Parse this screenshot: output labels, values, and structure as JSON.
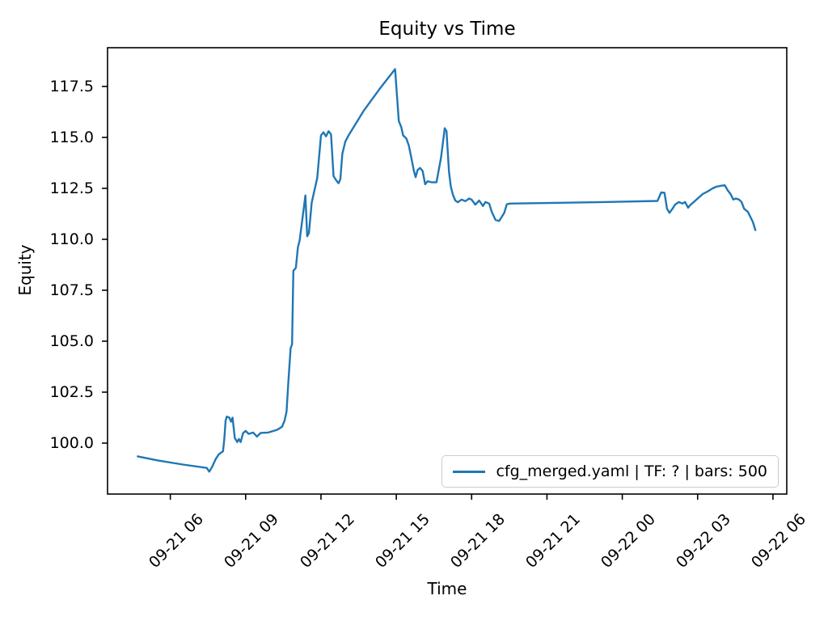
{
  "figure": {
    "title": "Equity vs Time",
    "xlabel": "Time",
    "ylabel": "Equity"
  },
  "legend": {
    "position": "lower right",
    "entries": [
      {
        "label": "cfg_merged.yaml | TF: ? | bars: 500",
        "color": "#1f77b4"
      }
    ]
  },
  "chart_data": {
    "type": "line",
    "title": "Equity vs Time",
    "xlabel": "Time",
    "ylabel": "Equity",
    "grid": false,
    "legend_position": "lower right",
    "line_color": "#1f77b4",
    "x_axis_unit": "hours since 09-21 00:00",
    "xlim": [
      3.5,
      30.55
    ],
    "ylim": [
      97.5,
      119.4
    ],
    "x_ticks": {
      "values": [
        6,
        9,
        12,
        15,
        18,
        21,
        24,
        27,
        30
      ],
      "labels": [
        "09-21 06",
        "09-21 09",
        "09-21 12",
        "09-21 15",
        "09-21 18",
        "09-21 21",
        "09-22 00",
        "09-22 03",
        "09-22 06"
      ]
    },
    "y_ticks": {
      "values": [
        100.0,
        102.5,
        105.0,
        107.5,
        110.0,
        112.5,
        115.0,
        117.5
      ],
      "labels": [
        "100.0",
        "102.5",
        "105.0",
        "107.5",
        "110.0",
        "112.5",
        "115.0",
        "117.5"
      ]
    },
    "series": [
      {
        "name": "cfg_merged.yaml | TF: ? | bars: 500",
        "color": "#1f77b4",
        "points": [
          [
            4.7,
            99.35
          ],
          [
            5.5,
            99.15
          ],
          [
            6.5,
            98.95
          ],
          [
            7.45,
            98.78
          ],
          [
            7.55,
            98.6
          ],
          [
            7.67,
            98.85
          ],
          [
            7.8,
            99.2
          ],
          [
            7.93,
            99.45
          ],
          [
            8.1,
            99.6
          ],
          [
            8.15,
            100.2
          ],
          [
            8.2,
            101.1
          ],
          [
            8.25,
            101.3
          ],
          [
            8.35,
            101.25
          ],
          [
            8.42,
            101.05
          ],
          [
            8.48,
            101.25
          ],
          [
            8.57,
            100.25
          ],
          [
            8.67,
            100.05
          ],
          [
            8.73,
            100.2
          ],
          [
            8.8,
            100.05
          ],
          [
            8.9,
            100.5
          ],
          [
            9.0,
            100.6
          ],
          [
            9.12,
            100.45
          ],
          [
            9.3,
            100.52
          ],
          [
            9.45,
            100.32
          ],
          [
            9.6,
            100.5
          ],
          [
            9.9,
            100.52
          ],
          [
            10.25,
            100.65
          ],
          [
            10.45,
            100.8
          ],
          [
            10.55,
            101.1
          ],
          [
            10.63,
            101.55
          ],
          [
            10.7,
            103.0
          ],
          [
            10.79,
            104.65
          ],
          [
            10.85,
            104.85
          ],
          [
            10.9,
            108.45
          ],
          [
            11.0,
            108.6
          ],
          [
            11.08,
            109.6
          ],
          [
            11.15,
            109.95
          ],
          [
            11.38,
            112.15
          ],
          [
            11.45,
            110.15
          ],
          [
            11.52,
            110.3
          ],
          [
            11.63,
            111.8
          ],
          [
            11.72,
            112.3
          ],
          [
            11.85,
            113.0
          ],
          [
            12.0,
            115.1
          ],
          [
            12.1,
            115.25
          ],
          [
            12.2,
            115.05
          ],
          [
            12.3,
            115.3
          ],
          [
            12.4,
            115.15
          ],
          [
            12.5,
            113.1
          ],
          [
            12.6,
            112.9
          ],
          [
            12.7,
            112.75
          ],
          [
            12.77,
            112.95
          ],
          [
            12.85,
            114.2
          ],
          [
            12.97,
            114.8
          ],
          [
            13.1,
            115.1
          ],
          [
            13.25,
            115.4
          ],
          [
            13.7,
            116.3
          ],
          [
            14.35,
            117.4
          ],
          [
            14.95,
            118.35
          ],
          [
            15.1,
            115.8
          ],
          [
            15.2,
            115.5
          ],
          [
            15.27,
            115.1
          ],
          [
            15.4,
            114.95
          ],
          [
            15.5,
            114.6
          ],
          [
            15.6,
            114.0
          ],
          [
            15.7,
            113.35
          ],
          [
            15.77,
            113.05
          ],
          [
            15.85,
            113.4
          ],
          [
            15.95,
            113.5
          ],
          [
            16.05,
            113.35
          ],
          [
            16.15,
            112.7
          ],
          [
            16.25,
            112.85
          ],
          [
            16.4,
            112.8
          ],
          [
            16.6,
            112.8
          ],
          [
            16.78,
            114.0
          ],
          [
            16.93,
            115.45
          ],
          [
            17.0,
            115.3
          ],
          [
            17.1,
            113.3
          ],
          [
            17.17,
            112.6
          ],
          [
            17.25,
            112.2
          ],
          [
            17.35,
            111.9
          ],
          [
            17.45,
            111.82
          ],
          [
            17.6,
            111.95
          ],
          [
            17.75,
            111.87
          ],
          [
            17.9,
            112.0
          ],
          [
            18.0,
            111.94
          ],
          [
            18.15,
            111.7
          ],
          [
            18.3,
            111.9
          ],
          [
            18.45,
            111.63
          ],
          [
            18.55,
            111.83
          ],
          [
            18.7,
            111.75
          ],
          [
            18.8,
            111.35
          ],
          [
            18.95,
            110.95
          ],
          [
            19.1,
            110.9
          ],
          [
            19.2,
            111.1
          ],
          [
            19.3,
            111.3
          ],
          [
            19.4,
            111.72
          ],
          [
            19.5,
            111.75
          ],
          [
            21.0,
            111.78
          ],
          [
            23.0,
            111.82
          ],
          [
            25.4,
            111.88
          ],
          [
            25.55,
            112.3
          ],
          [
            25.68,
            112.28
          ],
          [
            25.78,
            111.5
          ],
          [
            25.88,
            111.3
          ],
          [
            26.0,
            111.5
          ],
          [
            26.1,
            111.7
          ],
          [
            26.25,
            111.83
          ],
          [
            26.4,
            111.75
          ],
          [
            26.5,
            111.83
          ],
          [
            26.62,
            111.55
          ],
          [
            26.72,
            111.7
          ],
          [
            26.85,
            111.83
          ],
          [
            27.0,
            112.0
          ],
          [
            27.2,
            112.22
          ],
          [
            27.45,
            112.38
          ],
          [
            27.6,
            112.5
          ],
          [
            27.75,
            112.58
          ],
          [
            27.9,
            112.62
          ],
          [
            28.08,
            112.65
          ],
          [
            28.2,
            112.4
          ],
          [
            28.32,
            112.2
          ],
          [
            28.42,
            111.95
          ],
          [
            28.52,
            112.0
          ],
          [
            28.65,
            111.95
          ],
          [
            28.75,
            111.83
          ],
          [
            28.85,
            111.5
          ],
          [
            29.0,
            111.35
          ],
          [
            29.1,
            111.1
          ],
          [
            29.2,
            110.85
          ],
          [
            29.3,
            110.45
          ]
        ]
      }
    ]
  }
}
